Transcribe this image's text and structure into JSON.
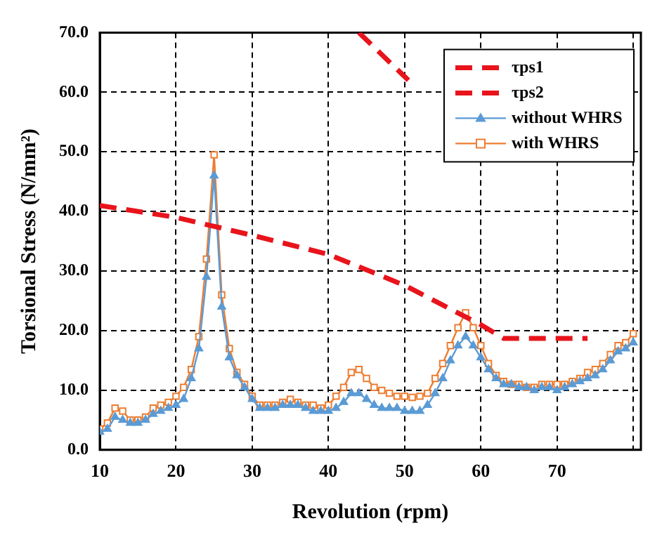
{
  "chart_data": {
    "type": "line",
    "xlabel": "Revolution (rpm)",
    "ylabel": "Torsional Stress (N/mm²)",
    "x": [
      10,
      11,
      12,
      13,
      14,
      15,
      16,
      17,
      18,
      19,
      20,
      21,
      22,
      23,
      24,
      25,
      26,
      27,
      28,
      29,
      30,
      31,
      32,
      33,
      34,
      35,
      36,
      37,
      38,
      39,
      40,
      41,
      42,
      43,
      44,
      45,
      46,
      47,
      48,
      49,
      50,
      51,
      52,
      53,
      54,
      55,
      56,
      57,
      58,
      59,
      60,
      61,
      62,
      63,
      64,
      65,
      66,
      67,
      68,
      69,
      70,
      71,
      72,
      73,
      74,
      75,
      76,
      77,
      78,
      79,
      80
    ],
    "xlim": [
      10,
      81
    ],
    "xticks": [
      10,
      20,
      30,
      40,
      50,
      60,
      70,
      {
        "value": 80,
        "label": null
      }
    ],
    "ylim": [
      0,
      70
    ],
    "yticks": [
      {
        "value": 0,
        "label": "0.0"
      },
      {
        "value": 10,
        "label": "10.0"
      },
      {
        "value": 20,
        "label": "20.0"
      },
      {
        "value": 30,
        "label": "30.0"
      },
      {
        "value": 40,
        "label": "40.0"
      },
      {
        "value": 50,
        "label": "50.0"
      },
      {
        "value": 60,
        "label": "60.0"
      },
      {
        "value": 70,
        "label": "70.0"
      }
    ],
    "grid": true,
    "legend": "top right",
    "series": [
      {
        "name": "τps1",
        "color": "#e8141c",
        "line_style": "dashed",
        "marker": "none",
        "x": [
          10,
          20,
          30,
          40,
          50,
          60,
          63,
          74
        ],
        "values": [
          41,
          39,
          36,
          32.8,
          27.6,
          21,
          18.7,
          18.7
        ]
      },
      {
        "name": "τps2",
        "color": "#e8141c",
        "line_style": "dashed",
        "marker": "none",
        "x": [
          44,
          50.5
        ],
        "values": [
          70,
          62
        ]
      },
      {
        "name": "without WHRS",
        "color": "#5b9bd5",
        "line_style": "solid",
        "marker": "triangle",
        "values": [
          3,
          3.5,
          5.5,
          5,
          4.5,
          4.5,
          5,
          6,
          6.5,
          7,
          7.5,
          8.5,
          12,
          17,
          29,
          46,
          24,
          15.5,
          12.5,
          10.5,
          8.5,
          7,
          7,
          7,
          7.5,
          7.5,
          7.5,
          7,
          6.5,
          6.5,
          6.5,
          7,
          8,
          9.5,
          9.5,
          8.5,
          7.5,
          7,
          7,
          7,
          6.5,
          6.5,
          6.5,
          7.5,
          9.5,
          12,
          15,
          17.5,
          19,
          17.5,
          15.5,
          13.5,
          12,
          11,
          11,
          10.5,
          10.5,
          10,
          10.5,
          10.5,
          10,
          10.5,
          11,
          11.5,
          12,
          12.5,
          13.5,
          15,
          16.5,
          17,
          18
        ]
      },
      {
        "name": "with WHRS",
        "color": "#ed7d31",
        "line_style": "solid",
        "marker": "square",
        "values": [
          3.5,
          4.5,
          7,
          6.5,
          5,
          5,
          5.5,
          7,
          7.5,
          8,
          9,
          10.5,
          13.5,
          19,
          32,
          49.5,
          26,
          17,
          13,
          11,
          9,
          7.5,
          7.5,
          7.5,
          8,
          8.5,
          8,
          7.5,
          7.5,
          7,
          7.5,
          9,
          10.5,
          13,
          13.5,
          12,
          10.5,
          10,
          9.5,
          9,
          9,
          8.8,
          9,
          9.5,
          12,
          14.5,
          17.5,
          20.5,
          23,
          20.5,
          17.5,
          14.5,
          12.5,
          11.5,
          11,
          11,
          10.5,
          10.5,
          11,
          11,
          11,
          11,
          11.5,
          12,
          13,
          13.5,
          14.5,
          16,
          17.5,
          18,
          19.5
        ]
      }
    ]
  }
}
